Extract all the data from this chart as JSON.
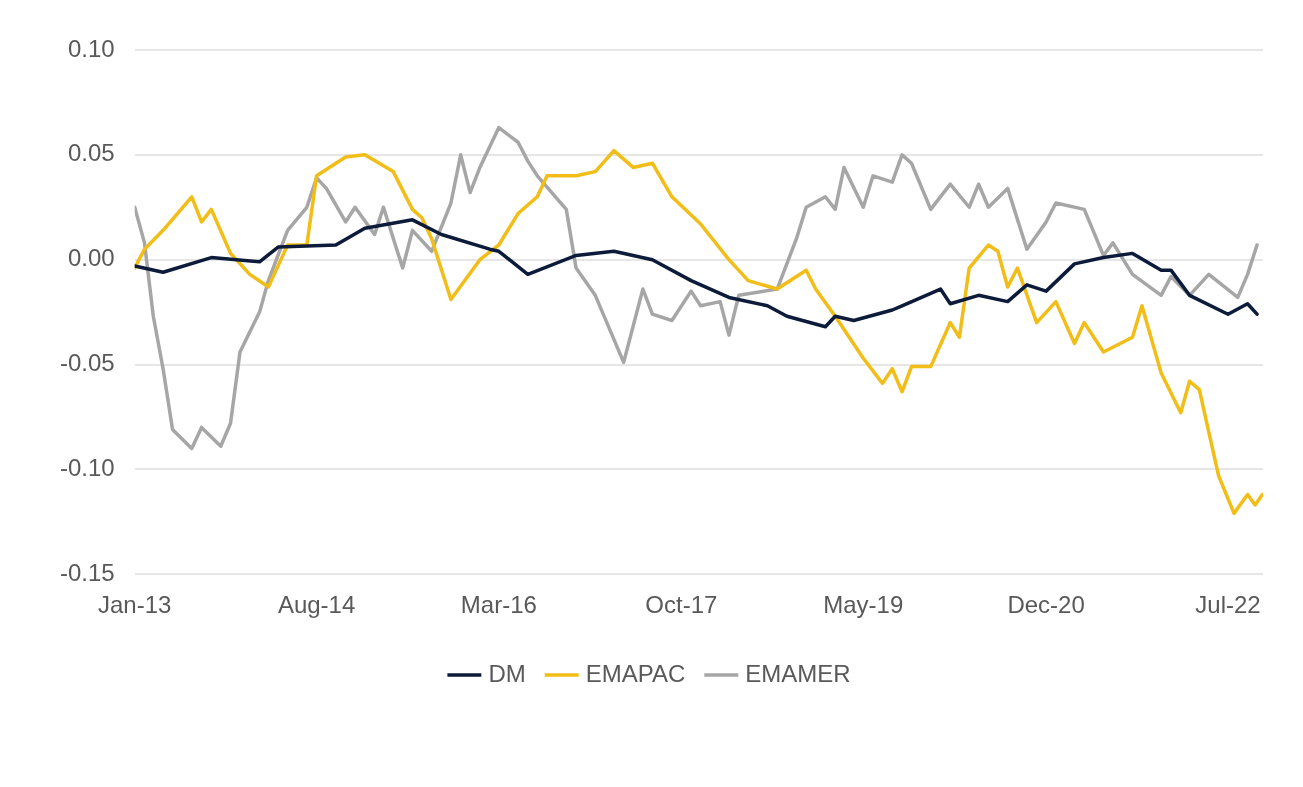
{
  "chart_data": {
    "type": "line",
    "series": [
      {
        "name": "DM",
        "color": "#0d1b3a",
        "x": [
          "2013-01",
          "2013-04",
          "2013-09",
          "2014-02",
          "2014-04",
          "2014-10",
          "2015-01",
          "2015-06",
          "2015-09",
          "2016-02",
          "2016-03",
          "2016-06",
          "2016-11",
          "2017-03",
          "2017-07",
          "2017-11",
          "2018-03",
          "2018-07",
          "2018-09",
          "2019-01",
          "2019-02",
          "2019-04",
          "2019-08",
          "2019-09",
          "2020-01",
          "2020-02",
          "2020-05",
          "2020-08",
          "2020-10",
          "2020-12",
          "2021-03",
          "2021-06",
          "2021-09",
          "2021-12",
          "2022-01",
          "2022-03",
          "2022-07",
          "2022-09",
          "2022-10"
        ],
        "values": [
          -0.003,
          -0.006,
          0.001,
          -0.001,
          0.006,
          0.007,
          0.015,
          0.019,
          0.012,
          0.005,
          0.004,
          -0.007,
          0.002,
          0.004,
          0.0,
          -0.01,
          -0.018,
          -0.022,
          -0.027,
          -0.032,
          -0.027,
          -0.029,
          -0.024,
          -0.022,
          -0.014,
          -0.021,
          -0.017,
          -0.02,
          -0.012,
          -0.015,
          -0.002,
          0.001,
          0.003,
          -0.005,
          -0.005,
          -0.017,
          -0.026,
          -0.021,
          -0.026
        ]
      },
      {
        "name": "EMAPAC",
        "color": "#f2bd16",
        "x": [
          "2013-01",
          "2013-02",
          "2013-04",
          "2013-07",
          "2013-08",
          "2013-09",
          "2013-11",
          "2014-01",
          "2014-03",
          "2014-05",
          "2014-07",
          "2014-08",
          "2014-11",
          "2015-01",
          "2015-04",
          "2015-06",
          "2015-07",
          "2015-08",
          "2015-10",
          "2016-01",
          "2016-03",
          "2016-05",
          "2016-07",
          "2016-08",
          "2016-11",
          "2017-01",
          "2017-03",
          "2017-05",
          "2017-07",
          "2017-09",
          "2017-12",
          "2018-03",
          "2018-05",
          "2018-08",
          "2018-11",
          "2018-12",
          "2019-02",
          "2019-05",
          "2019-07",
          "2019-08",
          "2019-09",
          "2019-10",
          "2019-12",
          "2020-02",
          "2020-03",
          "2020-04",
          "2020-06",
          "2020-07",
          "2020-08",
          "2020-09",
          "2020-11",
          "2021-01",
          "2021-03",
          "2021-04",
          "2021-06",
          "2021-09",
          "2021-10",
          "2021-12",
          "2022-02",
          "2022-03",
          "2022-04",
          "2022-06",
          "2022-07-20",
          "2022-09-01",
          "2022-09-25",
          "2022-10-18"
        ],
        "values": [
          -0.004,
          0.005,
          0.014,
          0.03,
          0.018,
          0.024,
          0.003,
          -0.007,
          -0.013,
          0.007,
          0.007,
          0.04,
          0.049,
          0.05,
          0.042,
          0.024,
          0.02,
          0.01,
          -0.019,
          0.0,
          0.007,
          0.022,
          0.03,
          0.04,
          0.04,
          0.042,
          0.052,
          0.044,
          0.046,
          0.03,
          0.017,
          0.0,
          -0.01,
          -0.014,
          -0.005,
          -0.014,
          -0.027,
          -0.047,
          -0.059,
          -0.052,
          -0.063,
          -0.051,
          -0.051,
          -0.03,
          -0.037,
          -0.004,
          0.007,
          0.004,
          -0.013,
          -0.004,
          -0.03,
          -0.02,
          -0.04,
          -0.03,
          -0.044,
          -0.037,
          -0.022,
          -0.054,
          -0.073,
          -0.058,
          -0.062,
          -0.103,
          -0.121,
          -0.112,
          -0.117,
          -0.112
        ]
      },
      {
        "name": "EMAMER",
        "color": "#a6a6a6",
        "x": [
          "2013-01",
          "2013-02",
          "2013-03",
          "2013-04",
          "2013-05",
          "2013-07",
          "2013-08",
          "2013-10",
          "2013-11",
          "2013-12",
          "2014-02",
          "2014-03",
          "2014-05",
          "2014-07",
          "2014-08",
          "2014-09",
          "2014-11",
          "2014-12",
          "2015-02",
          "2015-03",
          "2015-05",
          "2015-06",
          "2015-08",
          "2015-10",
          "2015-11",
          "2015-12",
          "2016-01",
          "2016-03",
          "2016-05",
          "2016-06",
          "2016-07",
          "2016-10",
          "2016-11",
          "2017-01",
          "2017-04",
          "2017-06",
          "2017-07",
          "2017-09",
          "2017-11",
          "2017-12",
          "2018-02",
          "2018-03",
          "2018-04",
          "2018-08",
          "2018-10",
          "2018-11",
          "2019-01",
          "2019-02",
          "2019-03",
          "2019-05",
          "2019-06",
          "2019-08",
          "2019-09",
          "2019-10",
          "2019-12",
          "2020-02",
          "2020-04",
          "2020-05",
          "2020-06",
          "2020-08",
          "2020-10",
          "2020-12",
          "2021-01",
          "2021-04",
          "2021-06",
          "2021-07",
          "2021-09",
          "2021-12",
          "2022-01",
          "2022-03",
          "2022-05",
          "2022-08",
          "2022-09",
          "2022-10"
        ],
        "values": [
          0.025,
          0.008,
          -0.027,
          -0.052,
          -0.081,
          -0.09,
          -0.08,
          -0.089,
          -0.078,
          -0.044,
          -0.025,
          -0.01,
          0.014,
          0.025,
          0.039,
          0.034,
          0.018,
          0.025,
          0.012,
          0.025,
          -0.004,
          0.014,
          0.004,
          0.027,
          0.05,
          0.032,
          0.044,
          0.063,
          0.056,
          0.047,
          0.04,
          0.024,
          -0.004,
          -0.017,
          -0.049,
          -0.014,
          -0.026,
          -0.029,
          -0.015,
          -0.022,
          -0.02,
          -0.036,
          -0.017,
          -0.014,
          0.01,
          0.025,
          0.03,
          0.024,
          0.044,
          0.025,
          0.04,
          0.037,
          0.05,
          0.046,
          0.024,
          0.036,
          0.025,
          0.036,
          0.025,
          0.034,
          0.005,
          0.018,
          0.027,
          0.024,
          0.002,
          0.008,
          -0.007,
          -0.017,
          -0.008,
          -0.017,
          -0.007,
          -0.018,
          -0.007,
          0.007
        ]
      }
    ],
    "xlim": [
      "2013-01",
      "2022-10-20"
    ],
    "xticks": [
      {
        "value": "2013-01",
        "label": "Jan-13"
      },
      {
        "value": "2014-08",
        "label": "Aug-14"
      },
      {
        "value": "2016-03",
        "label": "Mar-16"
      },
      {
        "value": "2017-10",
        "label": "Oct-17"
      },
      {
        "value": "2019-05",
        "label": "May-19"
      },
      {
        "value": "2020-12",
        "label": "Dec-20"
      },
      {
        "value": "2022-07",
        "label": "Jul-22"
      }
    ],
    "ylim": [
      -0.15,
      0.1
    ],
    "yticks": [
      {
        "value": -0.15,
        "label": "-0.15"
      },
      {
        "value": -0.1,
        "label": "-0.10"
      },
      {
        "value": -0.05,
        "label": "-0.05"
      },
      {
        "value": 0,
        "label": "0.00"
      },
      {
        "value": 0.05,
        "label": "0.05"
      },
      {
        "value": 0.1,
        "label": "0.10"
      }
    ],
    "grid": "y",
    "legend": "bottom",
    "marker": "none",
    "line_style": "solid"
  }
}
